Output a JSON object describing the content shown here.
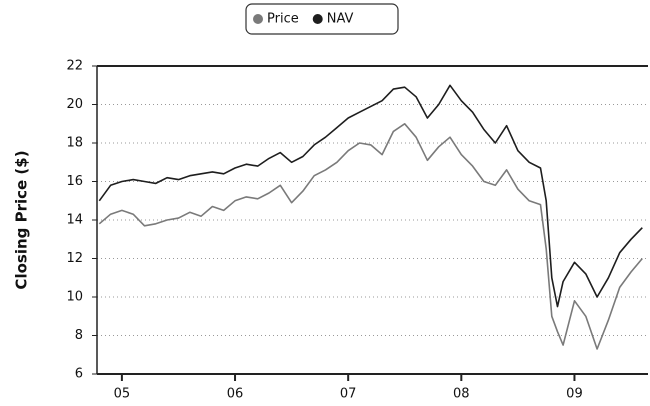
{
  "chart_data": {
    "type": "line",
    "y_label": "Closing Price ($)",
    "x": [
      2004.8,
      2004.9,
      2005.0,
      2005.1,
      2005.2,
      2005.3,
      2005.4,
      2005.5,
      2005.6,
      2005.7,
      2005.8,
      2005.9,
      2006.0,
      2006.1,
      2006.2,
      2006.3,
      2006.4,
      2006.5,
      2006.6,
      2006.7,
      2006.8,
      2006.9,
      2007.0,
      2007.1,
      2007.2,
      2007.3,
      2007.4,
      2007.5,
      2007.6,
      2007.7,
      2007.8,
      2007.9,
      2008.0,
      2008.1,
      2008.2,
      2008.3,
      2008.4,
      2008.5,
      2008.6,
      2008.7,
      2008.75,
      2008.8,
      2008.85,
      2008.9,
      2009.0,
      2009.1,
      2009.2,
      2009.3,
      2009.4,
      2009.5,
      2009.6
    ],
    "series": [
      {
        "name": "Price",
        "color": "#7a7a7a",
        "values": [
          13.8,
          14.3,
          14.5,
          14.3,
          13.7,
          13.8,
          14.0,
          14.1,
          14.4,
          14.2,
          14.7,
          14.5,
          15.0,
          15.2,
          15.1,
          15.4,
          15.8,
          14.9,
          15.5,
          16.3,
          16.6,
          17.0,
          17.6,
          18.0,
          17.9,
          17.4,
          18.6,
          19.0,
          18.3,
          17.1,
          17.8,
          18.3,
          17.4,
          16.8,
          16.0,
          15.8,
          16.6,
          15.6,
          15.0,
          14.8,
          12.5,
          9.0,
          8.2,
          7.5,
          9.8,
          9.0,
          7.3,
          8.8,
          10.5,
          11.3,
          12.0
        ]
      },
      {
        "name": "NAV",
        "color": "#1e1e1e",
        "values": [
          15.0,
          15.8,
          16.0,
          16.1,
          16.0,
          15.9,
          16.2,
          16.1,
          16.3,
          16.4,
          16.5,
          16.4,
          16.7,
          16.9,
          16.8,
          17.2,
          17.5,
          17.0,
          17.3,
          17.9,
          18.3,
          18.8,
          19.3,
          19.6,
          19.9,
          20.2,
          20.8,
          20.9,
          20.4,
          19.3,
          20.0,
          21.0,
          20.2,
          19.6,
          18.7,
          18.0,
          18.9,
          17.6,
          17.0,
          16.7,
          15.0,
          11.0,
          9.5,
          10.8,
          11.8,
          11.2,
          10.0,
          11.0,
          12.3,
          13.0,
          13.6
        ]
      }
    ],
    "xlim": [
      2004.78,
      2009.65
    ],
    "xticks": [
      {
        "value": 2005,
        "label": "05"
      },
      {
        "value": 2006,
        "label": "06"
      },
      {
        "value": 2007,
        "label": "07"
      },
      {
        "value": 2008,
        "label": "08"
      },
      {
        "value": 2009,
        "label": "09"
      }
    ],
    "ylim": [
      6,
      22
    ],
    "yticks": [
      6,
      8,
      10,
      12,
      14,
      16,
      18,
      20,
      22
    ],
    "grid": true,
    "legend": "top"
  }
}
